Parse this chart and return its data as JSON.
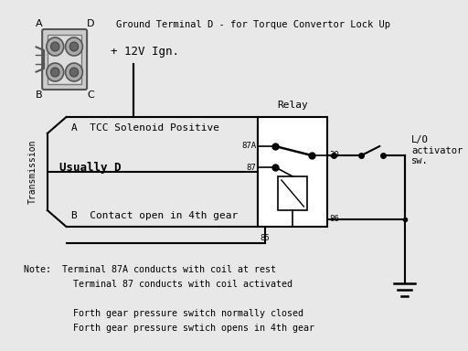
{
  "bg_color": "#e8e8e8",
  "line_color": "#000000",
  "label_ground": "Ground Terminal D - for Torque Convertor Lock Up",
  "label_12v": "+ 12V Ign.",
  "label_relay": "Relay",
  "label_lo": "L/O\nactivator\nsw.",
  "label_transmission": "Transmission",
  "label_tcc": "A  TCC Solenoid Positive",
  "label_usually_d": "Usually D",
  "label_contact": "B  Contact open in 4th gear",
  "label_85": "85",
  "label_87": "87",
  "label_87a": "87A",
  "label_30": "30",
  "label_86": "86",
  "note_lines": [
    "Note:  Terminal 87A conducts with coil at rest",
    "         Terminal 87 conducts with coil activated",
    "",
    "         Forth gear pressure switch normally closed",
    "         Forth gear pressure swtich opens in 4th gear"
  ]
}
